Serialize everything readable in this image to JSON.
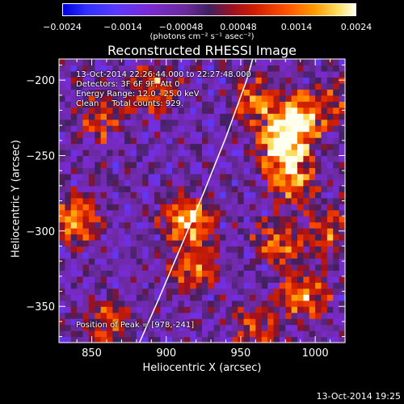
{
  "colorbar": {
    "tick_labels": [
      "−0.0024",
      "−0.0014",
      "−0.00048",
      "0.00048",
      "0.0014",
      "0.0024"
    ],
    "tick_values": [
      -0.0024,
      -0.0014,
      -0.00048,
      0.00048,
      0.0014,
      0.0024
    ],
    "range": [
      -0.0024,
      0.0024
    ],
    "units": "(photons cm⁻² s⁻¹ asec⁻²)"
  },
  "chart_data": {
    "type": "heatmap",
    "title": "Reconstructed RHESSI Image",
    "xlabel": "Heliocentric X (arcsec)",
    "ylabel": "Heliocentric Y (arcsec)",
    "xlim": [
      828,
      1020
    ],
    "ylim": [
      -374,
      -186
    ],
    "x_ticks": [
      850,
      900,
      950,
      1000
    ],
    "x_tick_labels": [
      "850",
      "900",
      "950",
      "1000"
    ],
    "y_ticks": [
      -200,
      -250,
      -300,
      -350
    ],
    "y_tick_labels": [
      "−200",
      "−250",
      "−300",
      "−350"
    ],
    "sources": [
      {
        "x": 978,
        "y": -241,
        "intensity": 1.0
      },
      {
        "x": 990,
        "y": -225,
        "intensity": 0.8
      },
      {
        "x": 985,
        "y": -265,
        "intensity": 0.7
      },
      {
        "x": 915,
        "y": -292,
        "intensity": 0.85
      },
      {
        "x": 918,
        "y": -325,
        "intensity": 0.55
      },
      {
        "x": 840,
        "y": -292,
        "intensity": 0.7
      },
      {
        "x": 855,
        "y": -225,
        "intensity": 0.45
      },
      {
        "x": 892,
        "y": -205,
        "intensity": 0.55
      },
      {
        "x": 960,
        "y": -212,
        "intensity": 0.5
      },
      {
        "x": 992,
        "y": -342,
        "intensity": 0.7
      },
      {
        "x": 975,
        "y": -308,
        "intensity": 0.5
      },
      {
        "x": 1010,
        "y": -300,
        "intensity": 0.45
      },
      {
        "x": 860,
        "y": -360,
        "intensity": 0.4
      },
      {
        "x": 960,
        "y": -365,
        "intensity": 0.4
      },
      {
        "x": 1015,
        "y": -215,
        "intensity": 0.35
      }
    ],
    "limb_curve": [
      [
        882,
        -374
      ],
      [
        895,
        -345
      ],
      [
        910,
        -310
      ],
      [
        925,
        -275
      ],
      [
        940,
        -238
      ],
      [
        954,
        -200
      ],
      [
        958,
        -186
      ]
    ],
    "annotations": [
      "13-Oct-2014 22:26:44.000 to 22:27:48.000",
      "Detectors: 3F 6F 9F, Att 0",
      "Energy Range: 12.0 - 25.0 keV",
      "Clean     Total counts: 929.",
      "Position of Peak = [978,-241]"
    ]
  },
  "footer": "13-Oct-2014 19:25"
}
